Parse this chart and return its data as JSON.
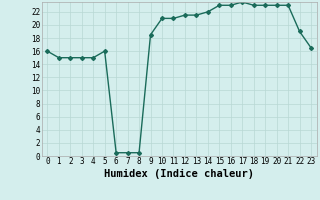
{
  "x": [
    0,
    1,
    2,
    3,
    4,
    5,
    6,
    7,
    8,
    9,
    10,
    11,
    12,
    13,
    14,
    15,
    16,
    17,
    18,
    19,
    20,
    21,
    22,
    23
  ],
  "y": [
    16,
    15,
    15,
    15,
    15,
    16,
    0.5,
    0.5,
    0.5,
    18.5,
    21,
    21,
    21.5,
    21.5,
    22,
    23,
    23,
    23.5,
    23,
    23,
    23,
    23,
    19,
    16.5
  ],
  "line_color": "#1a6b5a",
  "marker": "D",
  "marker_size": 2,
  "bg_color": "#d4eeed",
  "grid_color": "#b8d8d4",
  "xlabel": "Humidex (Indice chaleur)",
  "xlabel_fontsize": 7.5,
  "xlim": [
    -0.5,
    23.5
  ],
  "ylim": [
    0,
    23.5
  ],
  "yticks": [
    0,
    2,
    4,
    6,
    8,
    10,
    12,
    14,
    16,
    18,
    20,
    22
  ],
  "xticks": [
    0,
    1,
    2,
    3,
    4,
    5,
    6,
    7,
    8,
    9,
    10,
    11,
    12,
    13,
    14,
    15,
    16,
    17,
    18,
    19,
    20,
    21,
    22,
    23
  ],
  "tick_fontsize": 5.5,
  "linewidth": 1.0
}
